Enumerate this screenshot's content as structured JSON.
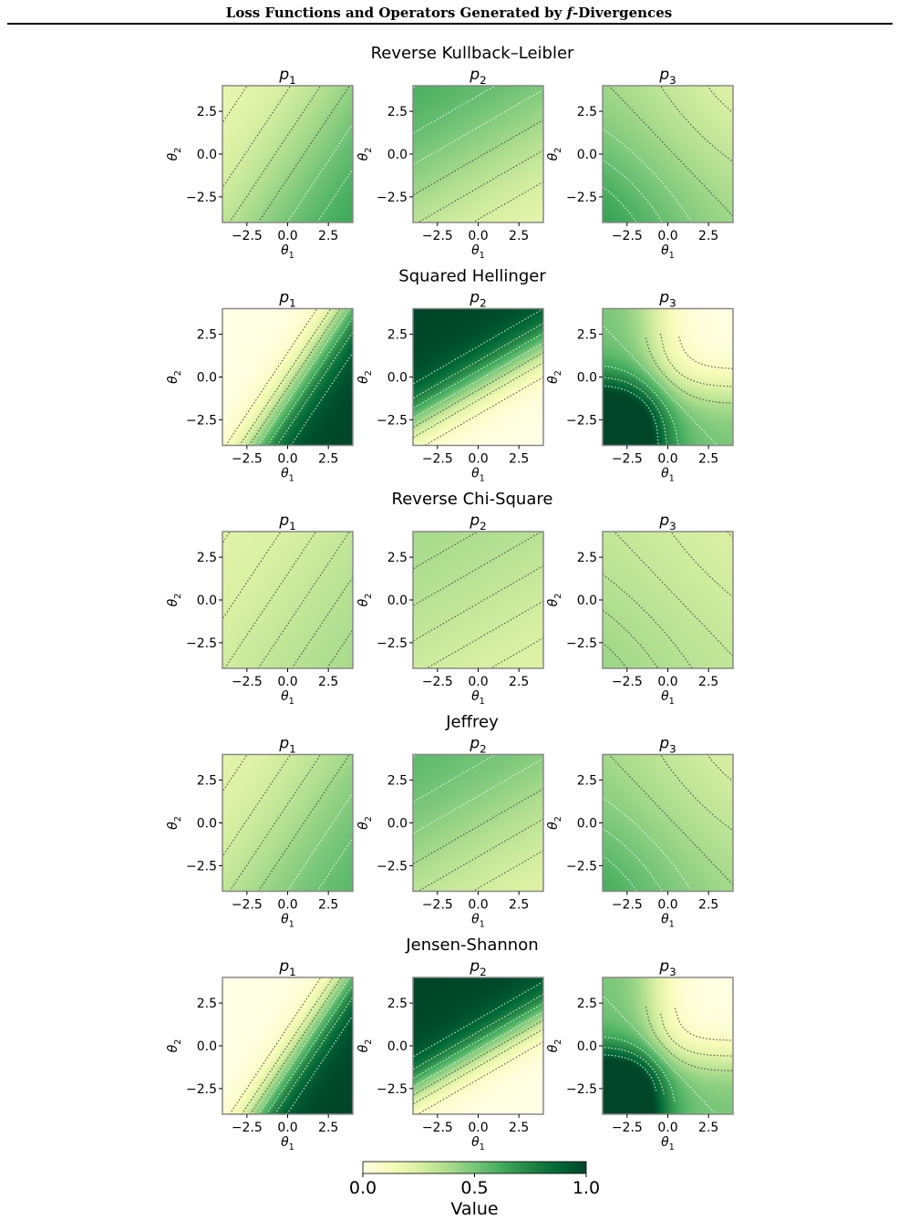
{
  "header": {
    "title_before": "Loss Functions and Operators Generated by ",
    "title_symbol": "f",
    "title_after": "-Divergences"
  },
  "chart_data": {
    "type": "heatmap",
    "grid": false,
    "xlabel": "θ1",
    "ylabel": "θ2",
    "xlim": [
      -4,
      4
    ],
    "ylim": [
      -4,
      4
    ],
    "xticks": [
      -2.5,
      0.0,
      2.5
    ],
    "yticks": [
      -2.5,
      0.0,
      2.5
    ],
    "xtick_labels": [
      "−2.5",
      "0.0",
      "2.5"
    ],
    "ytick_labels": [
      "−2.5",
      "0.0",
      "2.5"
    ],
    "columns": [
      "p1",
      "p2",
      "p3"
    ],
    "rows": [
      {
        "title": "Reverse Kullback–Leibler",
        "panels": [
          {
            "subtitle": "p1",
            "max_value": 0.7,
            "min_value": 0.15,
            "sharpness": 0.35
          },
          {
            "subtitle": "p2",
            "max_value": 0.65,
            "min_value": 0.15,
            "sharpness": 0.35
          },
          {
            "subtitle": "p3",
            "max_value": 0.65,
            "min_value": 0.15,
            "sharpness": 0.35
          }
        ]
      },
      {
        "title": "Squared Hellinger",
        "panels": [
          {
            "subtitle": "p1",
            "max_value": 1.0,
            "min_value": 0.0,
            "sharpness": 1.1
          },
          {
            "subtitle": "p2",
            "max_value": 1.0,
            "min_value": 0.0,
            "sharpness": 1.1
          },
          {
            "subtitle": "p3",
            "max_value": 1.0,
            "min_value": 0.0,
            "sharpness": 1.1
          }
        ]
      },
      {
        "title": "Reverse Chi-Square",
        "panels": [
          {
            "subtitle": "p1",
            "max_value": 0.42,
            "min_value": 0.2,
            "sharpness": 0.3
          },
          {
            "subtitle": "p2",
            "max_value": 0.42,
            "min_value": 0.2,
            "sharpness": 0.3
          },
          {
            "subtitle": "p3",
            "max_value": 0.42,
            "min_value": 0.2,
            "sharpness": 0.3
          }
        ]
      },
      {
        "title": "Jeffrey",
        "panels": [
          {
            "subtitle": "p1",
            "max_value": 0.62,
            "min_value": 0.18,
            "sharpness": 0.35
          },
          {
            "subtitle": "p2",
            "max_value": 0.6,
            "min_value": 0.18,
            "sharpness": 0.35
          },
          {
            "subtitle": "p3",
            "max_value": 0.6,
            "min_value": 0.18,
            "sharpness": 0.35
          }
        ]
      },
      {
        "title": "Jensen-Shannon",
        "panels": [
          {
            "subtitle": "p1",
            "max_value": 1.0,
            "min_value": 0.0,
            "sharpness": 1.25
          },
          {
            "subtitle": "p2",
            "max_value": 1.0,
            "min_value": 0.0,
            "sharpness": 1.25
          },
          {
            "subtitle": "p3",
            "max_value": 1.0,
            "min_value": 0.0,
            "sharpness": 1.25
          }
        ]
      }
    ],
    "colorbar": {
      "label": "Value",
      "range": [
        0.0,
        1.0
      ],
      "ticks": [
        0.0,
        0.5,
        1.0
      ],
      "tick_labels": [
        "0.0",
        "0.5",
        "1.0"
      ],
      "colors": [
        "#ffffe5",
        "#f7fcb9",
        "#d9f0a3",
        "#addd8e",
        "#78c679",
        "#41ab5d",
        "#238443",
        "#006837",
        "#004529"
      ]
    },
    "contour_colors": {
      "dark": "#333333",
      "light": "#ffffff"
    }
  }
}
